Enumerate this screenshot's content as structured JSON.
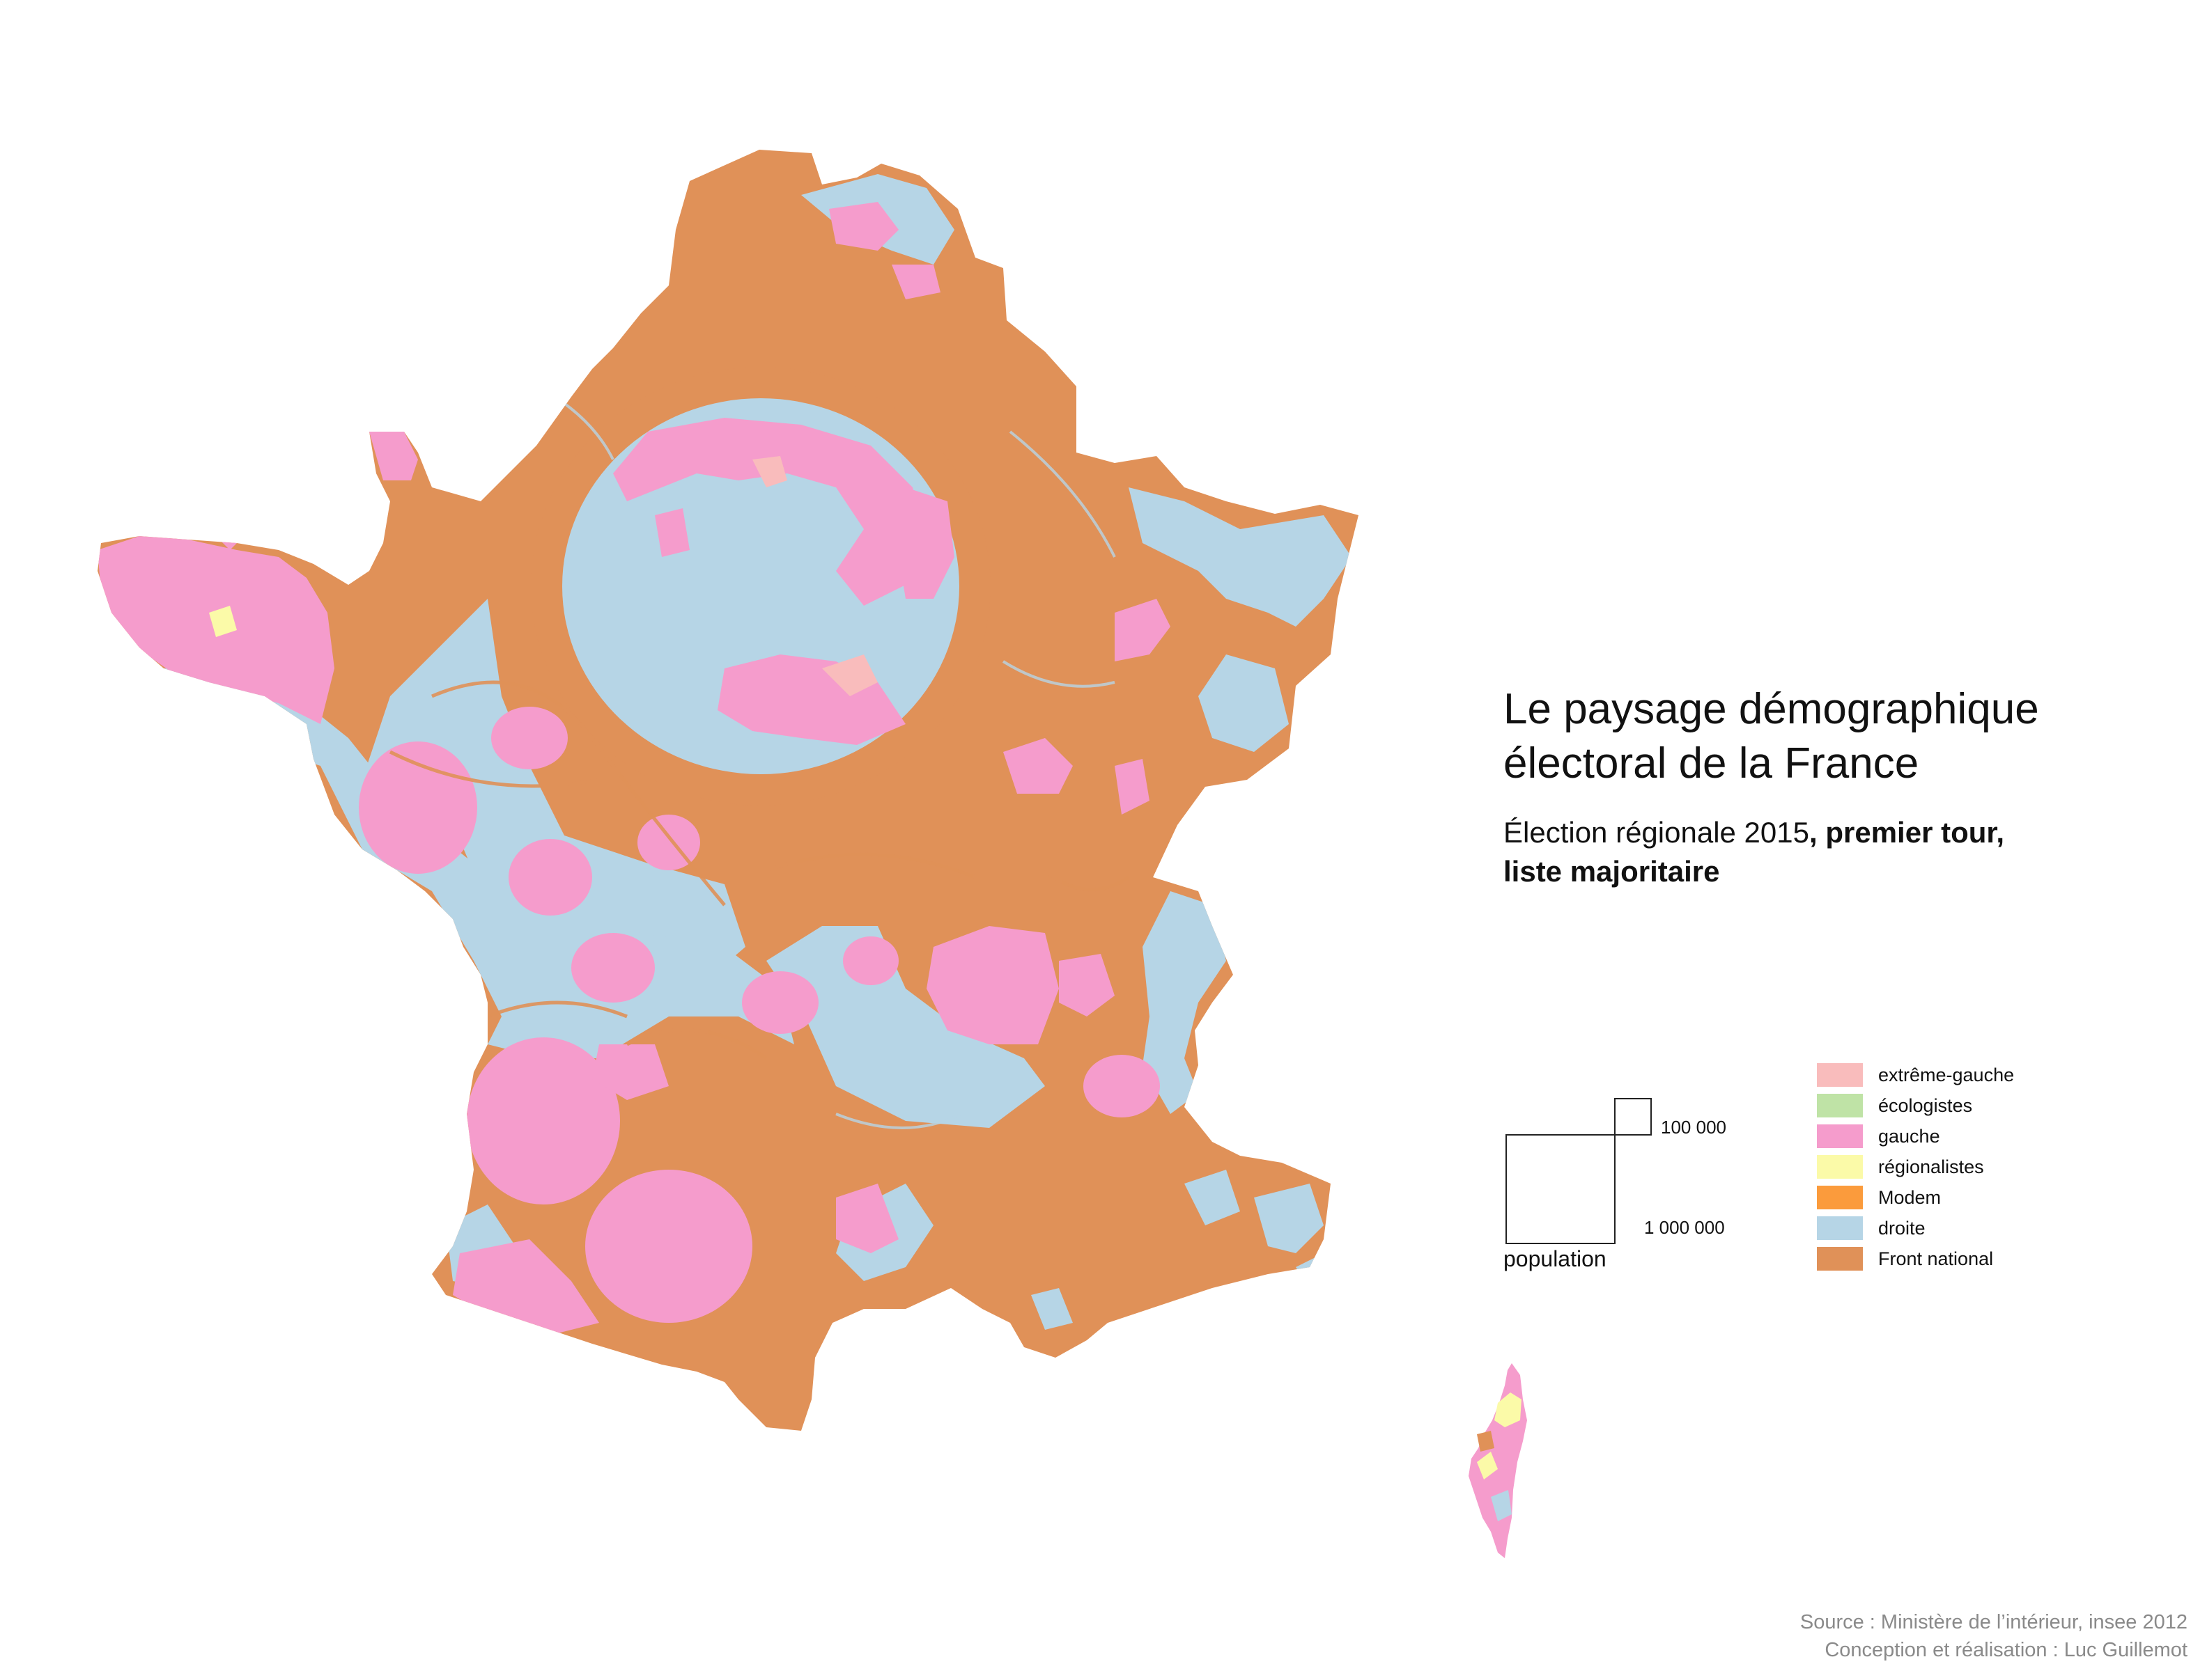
{
  "title_line1": "Le paysage démographique",
  "title_line2": "électoral de la France",
  "subtitle_plain": "Élection régionale 2015",
  "subtitle_bold1": ", premier tour,",
  "subtitle_bold2": "liste majoritaire",
  "scale": {
    "small_label": "100 000",
    "large_label": "1 000 000",
    "population_label": "population"
  },
  "legend": [
    {
      "label": "extrême-gauche",
      "color": "#f9bcbc"
    },
    {
      "label": "écologistes",
      "color": "#bfe3a6"
    },
    {
      "label": "gauche",
      "color": "#f59ccc"
    },
    {
      "label": "régionalistes",
      "color": "#fbfaa8"
    },
    {
      "label": "Modem",
      "color": "#fb9b3c"
    },
    {
      "label": "droite",
      "color": "#b6d5e6"
    },
    {
      "label": "Front national",
      "color": "#e09158"
    }
  ],
  "source": {
    "line1": "Source : Ministère de l’intérieur, insee 2012",
    "line2": "Conception et réalisation : Luc Guillemot"
  }
}
